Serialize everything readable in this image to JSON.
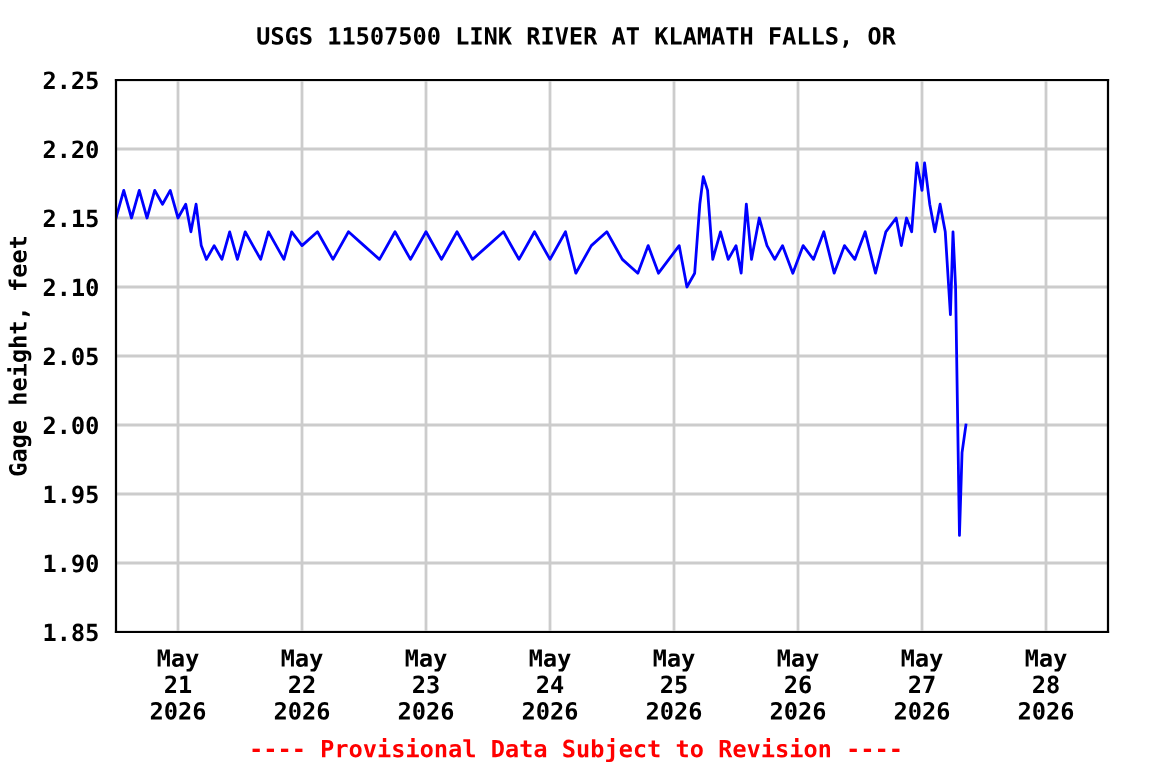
{
  "chart_data": {
    "type": "line",
    "title": "USGS 11507500 LINK RIVER AT KLAMATH FALLS, OR",
    "ylabel": "Gage height, feet",
    "annotations": [
      "---- Provisional Data Subject to Revision ----"
    ],
    "x": [
      "2026-05-20T12:00",
      "2026-05-20T13:30",
      "2026-05-20T15:00",
      "2026-05-20T16:30",
      "2026-05-20T18:00",
      "2026-05-20T19:30",
      "2026-05-20T21:00",
      "2026-05-20T22:30",
      "2026-05-21T00:00",
      "2026-05-21T01:30",
      "2026-05-21T02:30",
      "2026-05-21T03:30",
      "2026-05-21T04:30",
      "2026-05-21T05:30",
      "2026-05-21T07:00",
      "2026-05-21T08:30",
      "2026-05-21T10:00",
      "2026-05-21T11:30",
      "2026-05-21T13:00",
      "2026-05-21T14:30",
      "2026-05-21T16:00",
      "2026-05-21T17:30",
      "2026-05-21T19:00",
      "2026-05-21T20:30",
      "2026-05-21T22:00",
      "2026-05-22T00:00",
      "2026-05-22T03:00",
      "2026-05-22T06:00",
      "2026-05-22T09:00",
      "2026-05-22T12:00",
      "2026-05-22T15:00",
      "2026-05-22T18:00",
      "2026-05-22T21:00",
      "2026-05-23T00:00",
      "2026-05-23T03:00",
      "2026-05-23T06:00",
      "2026-05-23T09:00",
      "2026-05-23T12:00",
      "2026-05-23T15:00",
      "2026-05-23T18:00",
      "2026-05-23T21:00",
      "2026-05-24T00:00",
      "2026-05-24T03:00",
      "2026-05-24T05:00",
      "2026-05-24T08:00",
      "2026-05-24T11:00",
      "2026-05-24T14:00",
      "2026-05-24T17:00",
      "2026-05-24T19:00",
      "2026-05-24T21:00",
      "2026-05-24T23:00",
      "2026-05-25T01:00",
      "2026-05-25T02:30",
      "2026-05-25T04:00",
      "2026-05-25T05:00",
      "2026-05-25T05:40",
      "2026-05-25T06:30",
      "2026-05-25T07:30",
      "2026-05-25T09:00",
      "2026-05-25T10:30",
      "2026-05-25T12:00",
      "2026-05-25T13:00",
      "2026-05-25T14:00",
      "2026-05-25T15:00",
      "2026-05-25T16:30",
      "2026-05-25T18:00",
      "2026-05-25T19:30",
      "2026-05-25T21:00",
      "2026-05-25T23:00",
      "2026-05-26T01:00",
      "2026-05-26T03:00",
      "2026-05-26T05:00",
      "2026-05-26T07:00",
      "2026-05-26T09:00",
      "2026-05-26T11:00",
      "2026-05-26T13:00",
      "2026-05-26T15:00",
      "2026-05-26T17:00",
      "2026-05-26T19:00",
      "2026-05-26T20:00",
      "2026-05-26T21:00",
      "2026-05-26T22:00",
      "2026-05-26T23:00",
      "2026-05-27T00:00",
      "2026-05-27T00:30",
      "2026-05-27T01:30",
      "2026-05-27T02:30",
      "2026-05-27T03:30",
      "2026-05-27T04:30",
      "2026-05-27T05:30",
      "2026-05-27T06:00",
      "2026-05-27T06:30",
      "2026-05-27T07:15",
      "2026-05-27T07:45",
      "2026-05-27T08:30"
    ],
    "series": [
      {
        "color": "#0000ff",
        "values": [
          2.15,
          2.17,
          2.15,
          2.17,
          2.15,
          2.17,
          2.16,
          2.17,
          2.15,
          2.16,
          2.14,
          2.16,
          2.13,
          2.12,
          2.13,
          2.12,
          2.14,
          2.12,
          2.14,
          2.13,
          2.12,
          2.14,
          2.13,
          2.12,
          2.14,
          2.13,
          2.14,
          2.12,
          2.14,
          2.13,
          2.12,
          2.14,
          2.12,
          2.14,
          2.12,
          2.14,
          2.12,
          2.13,
          2.14,
          2.12,
          2.14,
          2.12,
          2.14,
          2.11,
          2.13,
          2.14,
          2.12,
          2.11,
          2.13,
          2.11,
          2.12,
          2.13,
          2.1,
          2.11,
          2.16,
          2.18,
          2.17,
          2.12,
          2.14,
          2.12,
          2.13,
          2.11,
          2.16,
          2.12,
          2.15,
          2.13,
          2.12,
          2.13,
          2.11,
          2.13,
          2.12,
          2.14,
          2.11,
          2.13,
          2.12,
          2.14,
          2.11,
          2.14,
          2.15,
          2.13,
          2.15,
          2.14,
          2.19,
          2.17,
          2.19,
          2.16,
          2.14,
          2.16,
          2.14,
          2.08,
          2.14,
          2.1,
          1.92,
          1.98,
          2.0
        ]
      }
    ],
    "xlim": [
      "2026-05-20T12:00",
      "2026-05-28T12:00"
    ],
    "xticks": [
      {
        "value": "2026-05-21",
        "label": "May\n21\n2026"
      },
      {
        "value": "2026-05-22",
        "label": "May\n22\n2026"
      },
      {
        "value": "2026-05-23",
        "label": "May\n23\n2026"
      },
      {
        "value": "2026-05-24",
        "label": "May\n24\n2026"
      },
      {
        "value": "2026-05-25",
        "label": "May\n25\n2026"
      },
      {
        "value": "2026-05-26",
        "label": "May\n26\n2026"
      },
      {
        "value": "2026-05-27",
        "label": "May\n27\n2026"
      },
      {
        "value": "2026-05-28",
        "label": "May\n28\n2026"
      }
    ],
    "ylim": [
      1.85,
      2.25
    ],
    "yticks": [
      {
        "value": 1.85,
        "label": "1.85"
      },
      {
        "value": 1.9,
        "label": "1.90"
      },
      {
        "value": 1.95,
        "label": "1.95"
      },
      {
        "value": 2.0,
        "label": "2.00"
      },
      {
        "value": 2.05,
        "label": "2.05"
      },
      {
        "value": 2.1,
        "label": "2.10"
      },
      {
        "value": 2.15,
        "label": "2.15"
      },
      {
        "value": 2.2,
        "label": "2.20"
      },
      {
        "value": 2.25,
        "label": "2.25"
      }
    ],
    "grid": true,
    "line_style": "solid",
    "marker": "none"
  }
}
